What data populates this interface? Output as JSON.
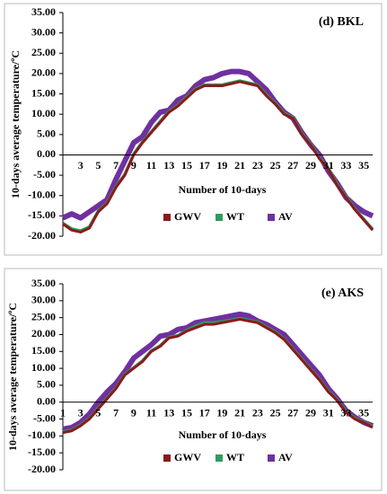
{
  "chart_data": [
    {
      "type": "line",
      "title": "(d) BKL",
      "x_label": "Number of 10-days",
      "y_label": "10-days average temperature/ºC",
      "categories": [
        null,
        null,
        3,
        null,
        5,
        null,
        7,
        null,
        9,
        null,
        11,
        null,
        13,
        null,
        15,
        null,
        17,
        null,
        19,
        null,
        21,
        null,
        23,
        null,
        25,
        null,
        27,
        null,
        29,
        null,
        31,
        null,
        33,
        null,
        35,
        null
      ],
      "ylim": [
        -20,
        35
      ],
      "yticks": [
        {
          "value": -20,
          "label": "-20.00"
        },
        {
          "value": -15,
          "label": "-15.00"
        },
        {
          "value": -10,
          "label": "-10.00"
        },
        {
          "value": -5,
          "label": "-5.00"
        },
        {
          "value": 0,
          "label": "0.00"
        },
        {
          "value": 5,
          "label": "5.00"
        },
        {
          "value": 10,
          "label": "10.00"
        },
        {
          "value": 15,
          "label": "15.00"
        },
        {
          "value": 20,
          "label": "20.00"
        },
        {
          "value": 25,
          "label": "25.00"
        },
        {
          "value": 30,
          "label": "30.00"
        },
        {
          "value": 35,
          "label": "35.00"
        }
      ],
      "series": [
        {
          "name": "AV",
          "color": "#7030a0",
          "values": [
            -15.5,
            -14.5,
            -15.5,
            -14,
            -12.5,
            -11,
            -6,
            -1.5,
            3,
            4.5,
            8,
            10.5,
            11,
            13.5,
            14.5,
            17,
            18.5,
            19,
            20,
            20.5,
            20.5,
            20,
            18,
            16,
            13,
            10.5,
            9,
            5.5,
            2.5,
            0,
            -4,
            -7,
            -10.5,
            -12.5,
            -14,
            -15
          ]
        },
        {
          "name": "WT",
          "color": "#2e9e5b",
          "values": [
            -16.8,
            -18.2,
            -18.7,
            -17.7,
            -13.8,
            -11.8,
            -7.8,
            -4.8,
            0.2,
            3.2,
            5.7,
            8.2,
            10.7,
            12.2,
            14.2,
            16.2,
            17.2,
            17.2,
            17.2,
            17.7,
            18.2,
            17.7,
            17.2,
            14.7,
            12.7,
            10.2,
            9.2,
            5.2,
            2.7,
            -0.8,
            -3.3,
            -7.3,
            -10.3,
            -13.3,
            -15.8,
            -18.3
          ]
        },
        {
          "name": "GWV",
          "color": "#8b1a1a",
          "values": [
            -17,
            -18.5,
            -19,
            -18,
            -14,
            -12,
            -8,
            -5,
            0,
            3,
            5.5,
            8,
            10.5,
            12,
            14,
            16,
            17,
            17,
            17,
            17.5,
            18,
            17.5,
            17,
            14.5,
            12.5,
            10,
            9,
            5,
            2.5,
            -1,
            -3.5,
            -7.5,
            -10.5,
            -13.5,
            -16,
            -18.5
          ]
        }
      ]
    },
    {
      "type": "line",
      "title": "(e) AKS",
      "x_label": "Number of 10-days",
      "y_label": "10-days average temperature/ºC",
      "categories": [
        1,
        null,
        3,
        null,
        5,
        null,
        7,
        null,
        9,
        null,
        11,
        null,
        13,
        null,
        15,
        null,
        17,
        null,
        19,
        null,
        21,
        null,
        23,
        null,
        25,
        null,
        27,
        null,
        29,
        null,
        31,
        null,
        33,
        null,
        35,
        null
      ],
      "ylim": [
        -20,
        35
      ],
      "yticks": [
        {
          "value": -20,
          "label": "-20.00"
        },
        {
          "value": -15,
          "label": "-15.00"
        },
        {
          "value": -10,
          "label": "-10.00"
        },
        {
          "value": -5,
          "label": "-5.00"
        },
        {
          "value": 0,
          "label": "0.00"
        },
        {
          "value": 5,
          "label": "5.00"
        },
        {
          "value": 10,
          "label": "10.00"
        },
        {
          "value": 15,
          "label": "15.00"
        },
        {
          "value": 20,
          "label": "20.00"
        },
        {
          "value": 25,
          "label": "25.00"
        },
        {
          "value": 30,
          "label": "30.00"
        },
        {
          "value": 35,
          "label": "35.00"
        }
      ],
      "series": [
        {
          "name": "AV",
          "color": "#7030a0",
          "values": [
            -8,
            -7.5,
            -6,
            -3.5,
            0,
            3,
            5.5,
            9,
            13,
            15,
            17,
            19.5,
            20,
            21.5,
            22,
            23.5,
            24,
            24.5,
            25,
            25.5,
            26,
            25.5,
            24,
            23,
            21.5,
            20,
            17,
            14,
            11,
            8,
            4,
            1,
            -2.5,
            -4.5,
            -6,
            -7
          ]
        },
        {
          "name": "WT",
          "color": "#2e9e5b",
          "values": [
            -8.8,
            -8.3,
            -6.8,
            -4.8,
            -1.8,
            1.2,
            4.2,
            8.2,
            10.2,
            12.2,
            15.2,
            16.7,
            19.2,
            19.7,
            21.2,
            22.5,
            23.5,
            23.5,
            23.8,
            24.2,
            24.7,
            24.2,
            23.7,
            22.2,
            20.7,
            18.7,
            15.7,
            12.7,
            9.7,
            6.7,
            3.2,
            0.7,
            -2.8,
            -4.8,
            -5.8,
            -7.3
          ]
        },
        {
          "name": "GWV",
          "color": "#8b1a1a",
          "values": [
            -9,
            -8.5,
            -7,
            -5,
            -2,
            1,
            4,
            8,
            10,
            12,
            15,
            16.5,
            19,
            19.5,
            21,
            22,
            23,
            23,
            23.5,
            24,
            24.5,
            24,
            23.5,
            22,
            20.5,
            18.5,
            15.5,
            12.5,
            9.5,
            6.5,
            3,
            0.5,
            -3,
            -5,
            -6,
            -7.5
          ]
        }
      ]
    }
  ]
}
